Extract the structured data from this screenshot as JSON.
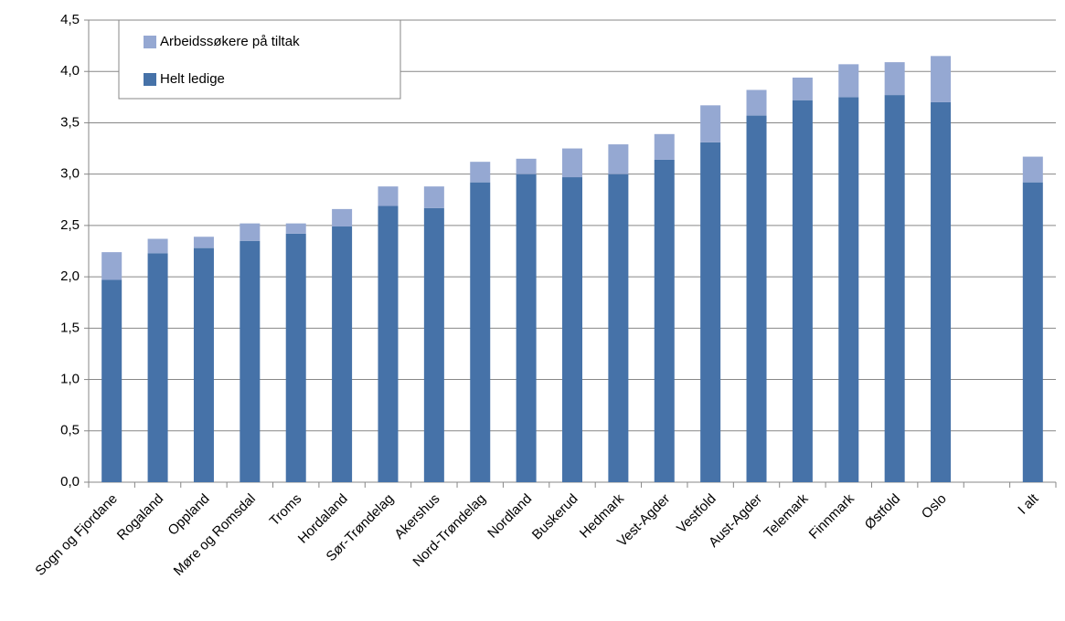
{
  "chart_data": {
    "type": "stacked_bar",
    "categories": [
      "Sogn og Fjordane",
      "Rogaland",
      "Oppland",
      "Møre og Romsdal",
      "Troms",
      "Hordaland",
      "Sør-Trøndelag",
      "Akershus",
      "Nord-Trøndelag",
      "Nordland",
      "Buskerud",
      "Hedmark",
      "Vest-Agder",
      "Vestfold",
      "Aust-Agder",
      "Telemark",
      "Finnmark",
      "Østfold",
      "Oslo",
      null,
      "I alt"
    ],
    "series": [
      {
        "name": "Helt ledige",
        "color": "#4672a8",
        "values": [
          1.97,
          2.23,
          2.28,
          2.35,
          2.42,
          2.49,
          2.69,
          2.67,
          2.92,
          3.0,
          2.97,
          3.0,
          3.14,
          3.31,
          3.57,
          3.72,
          3.75,
          3.77,
          3.7,
          null,
          2.92
        ]
      },
      {
        "name": "Arbeidssøkere på tiltak",
        "color": "#95a8d2",
        "values": [
          0.27,
          0.14,
          0.11,
          0.17,
          0.1,
          0.17,
          0.19,
          0.21,
          0.2,
          0.15,
          0.28,
          0.29,
          0.25,
          0.36,
          0.25,
          0.22,
          0.32,
          0.32,
          0.45,
          null,
          0.25
        ]
      }
    ],
    "ylim": [
      0,
      4.5
    ],
    "yticks": [
      {
        "value": 0,
        "label": "0,0"
      },
      {
        "value": 0.5,
        "label": "0,5"
      },
      {
        "value": 1,
        "label": "1,0"
      },
      {
        "value": 1.5,
        "label": "1,5"
      },
      {
        "value": 2,
        "label": "2,0"
      },
      {
        "value": 2.5,
        "label": "2,5"
      },
      {
        "value": 3,
        "label": "3,0"
      },
      {
        "value": 3.5,
        "label": "3,5"
      },
      {
        "value": 4,
        "label": "4,0"
      },
      {
        "value": 4.5,
        "label": "4,5"
      }
    ],
    "grid": true,
    "legend": "upper-left"
  }
}
